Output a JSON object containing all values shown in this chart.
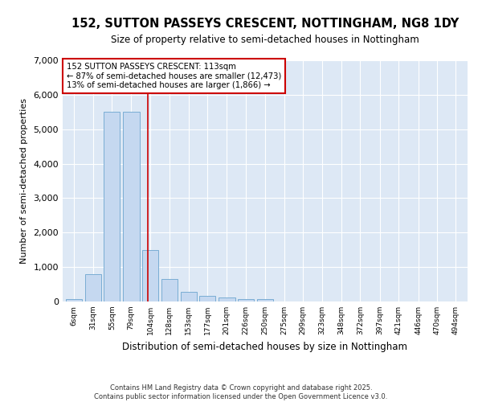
{
  "title": "152, SUTTON PASSEYS CRESCENT, NOTTINGHAM, NG8 1DY",
  "subtitle": "Size of property relative to semi-detached houses in Nottingham",
  "xlabel": "Distribution of semi-detached houses by size in Nottingham",
  "ylabel": "Number of semi-detached properties",
  "footer_line1": "Contains HM Land Registry data © Crown copyright and database right 2025.",
  "footer_line2": "Contains public sector information licensed under the Open Government Licence v3.0.",
  "annotation_title": "152 SUTTON PASSEYS CRESCENT: 113sqm",
  "annotation_line2": "← 87% of semi-detached houses are smaller (12,473)",
  "annotation_line3": "13% of semi-detached houses are larger (1,866) →",
  "property_size_sqm": 113,
  "bin_labels": [
    "6sqm",
    "31sqm",
    "55sqm",
    "79sqm",
    "104sqm",
    "128sqm",
    "153sqm",
    "177sqm",
    "201sqm",
    "226sqm",
    "250sqm",
    "275sqm",
    "299sqm",
    "323sqm",
    "348sqm",
    "372sqm",
    "397sqm",
    "421sqm",
    "446sqm",
    "470sqm",
    "494sqm"
  ],
  "bin_centers": [
    18,
    43,
    67,
    91,
    116,
    140,
    165,
    189,
    213,
    238,
    262,
    287,
    311,
    335,
    360,
    384,
    409,
    433,
    458,
    482,
    506
  ],
  "bin_edges": [
    6,
    31,
    55,
    79,
    104,
    128,
    153,
    177,
    201,
    226,
    250,
    275,
    299,
    323,
    348,
    372,
    397,
    421,
    446,
    470,
    494,
    519
  ],
  "bar_heights": [
    70,
    800,
    5500,
    5500,
    1500,
    660,
    280,
    160,
    110,
    80,
    60,
    0,
    0,
    0,
    0,
    0,
    0,
    0,
    0,
    0,
    0
  ],
  "bar_color": "#c5d8f0",
  "bar_edge_color": "#7aadd4",
  "vline_x": 113,
  "vline_color": "#cc0000",
  "plot_bg_color": "#dde8f5",
  "fig_bg_color": "#ffffff",
  "grid_color": "#ffffff",
  "ylim": [
    0,
    7000
  ],
  "yticks": [
    0,
    1000,
    2000,
    3000,
    4000,
    5000,
    6000,
    7000
  ]
}
